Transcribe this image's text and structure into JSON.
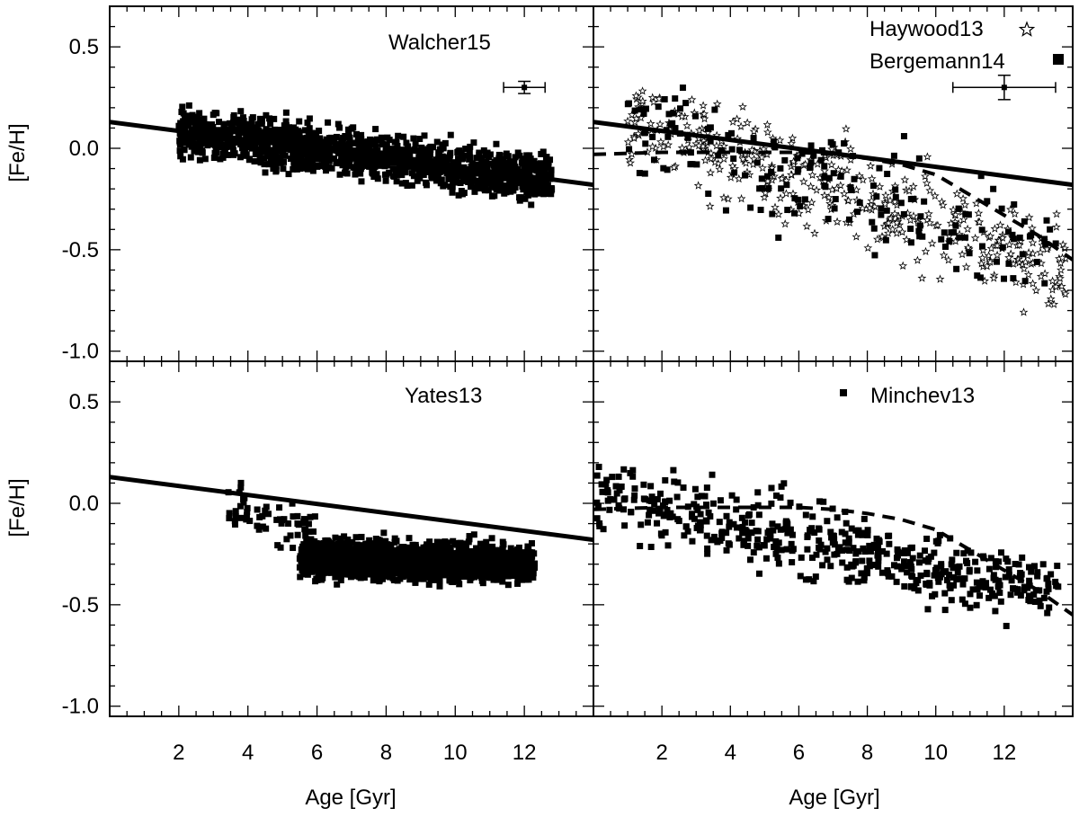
{
  "chart_data": {
    "type": "scatter",
    "layout": "2x2 grid, shared axes",
    "axes": {
      "ylabel": "[Fe/H]",
      "xlabel": "Age [Gyr]",
      "left_column": {
        "xlim": [
          0,
          14
        ],
        "xticks": [
          2,
          4,
          6,
          8,
          10,
          12
        ]
      },
      "right_column": {
        "xlim": [
          0,
          14
        ],
        "xticks": [
          2,
          4,
          6,
          8,
          10,
          12
        ]
      },
      "ylim": [
        -1.05,
        0.7
      ],
      "yticks": [
        0.5,
        0.0,
        -0.5,
        -1.0
      ],
      "ytick_labels": [
        "0.5",
        "0.0",
        "-0.5",
        "-1.0"
      ]
    },
    "reference_fit_line": {
      "x": [
        0,
        14
      ],
      "y": [
        0.13,
        -0.18
      ]
    },
    "panels": [
      {
        "id": "top-left",
        "title": "Walcher15",
        "series": [
          {
            "name": "Walcher15",
            "marker": "square",
            "cloud": {
              "x_range": [
                2.0,
                12.8
              ],
              "y_at_x_start": 0.08,
              "y_at_x_end": -0.15,
              "y_spread": 0.22,
              "count": 1500
            }
          }
        ],
        "error_bar": {
          "x": 12.0,
          "y": 0.3,
          "xerr": 0.6,
          "yerr": 0.03
        },
        "lines": [
          "reference_fit_line"
        ]
      },
      {
        "id": "top-right",
        "legend": [
          {
            "label": "Haywood13",
            "marker": "star-open"
          },
          {
            "label": "Bergemann14",
            "marker": "square"
          }
        ],
        "series": [
          {
            "name": "Haywood13",
            "marker": "star-open",
            "cloud": {
              "x_range": [
                1.0,
                13.8
              ],
              "y_at_x_start": 0.15,
              "y_at_x_end": -0.6,
              "y_spread": 0.45,
              "count": 420
            }
          },
          {
            "name": "Bergemann14",
            "marker": "square",
            "cloud": {
              "x_range": [
                1.0,
                13.6
              ],
              "y_at_x_start": 0.1,
              "y_at_x_end": -0.5,
              "y_spread": 0.5,
              "count": 180
            }
          }
        ],
        "error_bar": {
          "x": 12.0,
          "y": 0.3,
          "xerr": 1.5,
          "yerr": 0.06
        },
        "lines": [
          "reference_fit_line",
          "dashed_trend"
        ]
      },
      {
        "id": "bottom-left",
        "title": "Yates13",
        "series": [
          {
            "name": "Yates13",
            "marker": "square",
            "cloud": {
              "x_range": [
                5.5,
                12.3
              ],
              "y_at_x_start": -0.27,
              "y_at_x_end": -0.3,
              "y_spread": 0.18,
              "count": 1800
            },
            "sparse": {
              "x_range": [
                3.4,
                6.0
              ],
              "y_at_x_start": 0.0,
              "y_at_x_end": -0.15,
              "y_spread": 0.25,
              "count": 60
            }
          }
        ],
        "lines": [
          "reference_fit_line"
        ]
      },
      {
        "id": "bottom-right",
        "legend": [
          {
            "label": "Minchev13",
            "marker": "square"
          }
        ],
        "series": [
          {
            "name": "Minchev13",
            "marker": "square",
            "cloud": {
              "x_range": [
                0.1,
                13.6
              ],
              "y_at_x_start": 0.05,
              "y_at_x_end": -0.45,
              "y_spread": 0.35,
              "count": 520
            }
          }
        ],
        "lines": [
          "dashed_trend"
        ]
      }
    ],
    "dashed_trend": {
      "x": [
        0,
        2,
        4,
        6,
        7,
        8,
        9,
        10,
        11,
        12,
        13,
        14
      ],
      "y": [
        -0.03,
        -0.02,
        -0.02,
        -0.02,
        -0.03,
        -0.05,
        -0.08,
        -0.13,
        -0.23,
        -0.33,
        -0.43,
        -0.55
      ]
    }
  }
}
